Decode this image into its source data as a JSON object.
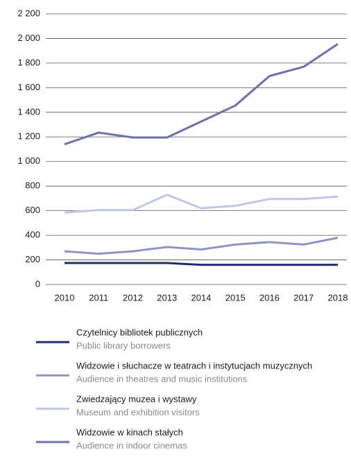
{
  "chart_data": {
    "type": "line",
    "categories": [
      "2010",
      "2011",
      "2012",
      "2013",
      "2014",
      "2015",
      "2016",
      "2017",
      "2018"
    ],
    "series": [
      {
        "name": "Czytelnicy bibliotek publicznych",
        "name_en": "Public library borrowers",
        "color": "#1f2d6b",
        "values": [
          175,
          175,
          175,
          175,
          160,
          160,
          160,
          160,
          160
        ]
      },
      {
        "name": "Widzowie i słuchacze w teatrach i instytucjach muzycznych",
        "name_en": "Audience in theatres and music institutions",
        "color": "#8f93c4",
        "values": [
          270,
          250,
          270,
          305,
          285,
          325,
          345,
          325,
          380
        ]
      },
      {
        "name": "Zwiedzający muzea i wystawy",
        "name_en": "Museum and exhibition visitors",
        "color": "#c3c6e3",
        "values": [
          585,
          605,
          605,
          730,
          620,
          640,
          695,
          695,
          715
        ]
      },
      {
        "name": "Widzowie w kinach stałych",
        "name_en": "Audience in indoor cinemas",
        "color": "#6b70a8",
        "values": [
          1140,
          1235,
          1195,
          1195,
          1325,
          1455,
          1695,
          1770,
          1955
        ]
      }
    ],
    "ylim": [
      0,
      2200
    ],
    "yticks": [
      0,
      200,
      400,
      600,
      800,
      {
        "value": 1000,
        "label": "1 000"
      },
      {
        "value": 1200,
        "label": "1 200"
      },
      {
        "value": 1400,
        "label": "1 400"
      },
      {
        "value": 1600,
        "label": "1 600"
      },
      {
        "value": 1800,
        "label": "1 800"
      },
      {
        "value": 2000,
        "label": "2 000"
      },
      {
        "value": 2200,
        "label": "2 200"
      }
    ],
    "grid": true
  }
}
